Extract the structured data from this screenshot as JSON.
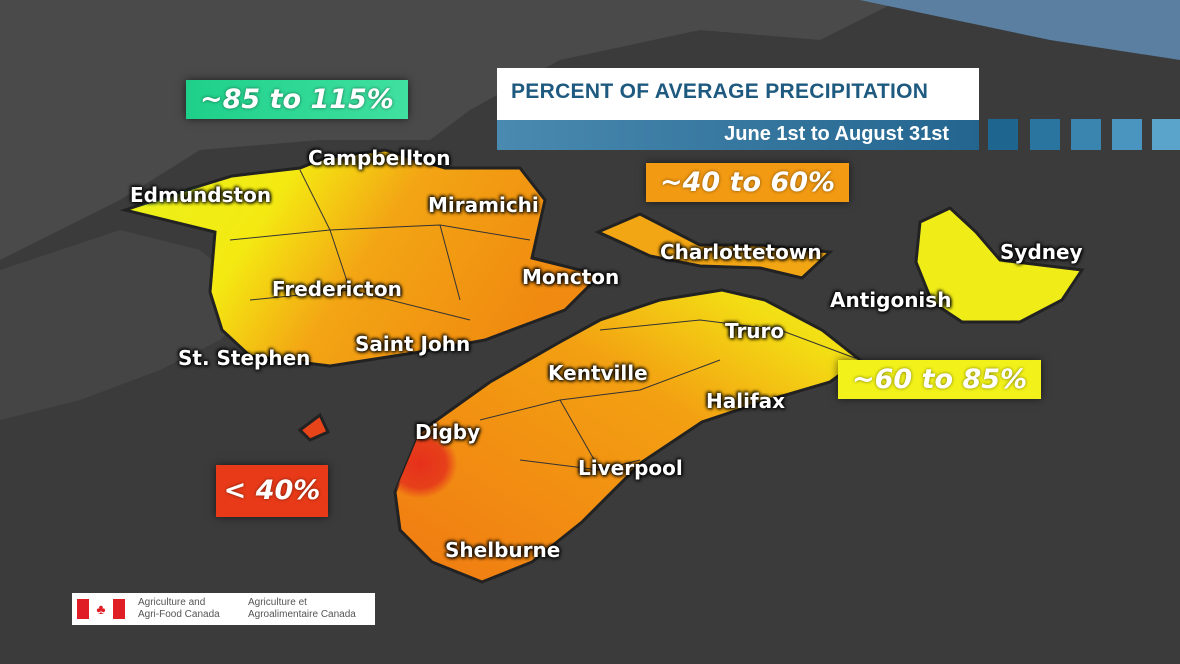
{
  "title": "PERCENT OF AVERAGE PRECIPITATION",
  "subtitle": "June 1st to August 31st",
  "legend": [
    {
      "label": "~85 to 115%",
      "color": "#2fd890"
    },
    {
      "label": "~40 to 60%",
      "color": "#f29a12"
    },
    {
      "label": "~60 to 85%",
      "color": "#f2f21a"
    },
    {
      "label": "< 40%",
      "color": "#e83a18"
    }
  ],
  "cities": [
    "Campbellton",
    "Edmundston",
    "Miramichi",
    "Charlottetown",
    "Sydney",
    "Fredericton",
    "Moncton",
    "Antigonish",
    "Truro",
    "Saint John",
    "St. Stephen",
    "Kentville",
    "Halifax",
    "Digby",
    "Liverpool",
    "Shelburne"
  ],
  "logo": {
    "en_line1": "Agriculture and",
    "en_line2": "Agri-Food Canada",
    "fr_line1": "Agriculture et",
    "fr_line2": "Agroalimentaire Canada"
  }
}
